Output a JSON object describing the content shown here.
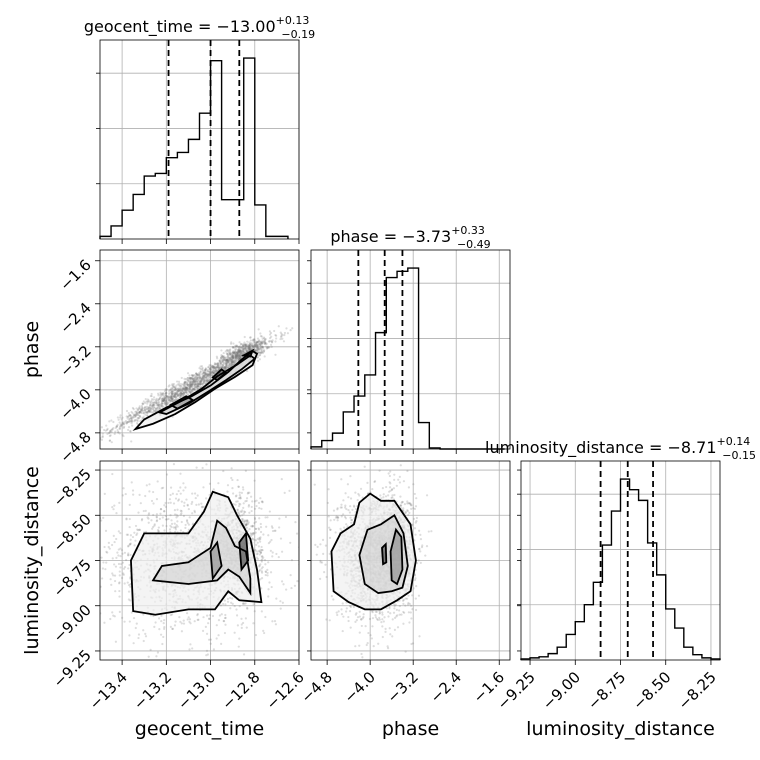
{
  "chart_data": {
    "type": "corner",
    "grid": true,
    "parameters": [
      {
        "name": "geocent_time",
        "label": "geocent_time",
        "range": [
          -13.5,
          -12.6
        ],
        "ticks": [
          -13.4,
          -13.2,
          -13.0,
          -12.8,
          -12.6
        ],
        "tick_labels": [
          "−13.4",
          "−13.2",
          "−13.0",
          "−12.8",
          "−12.6"
        ],
        "title_prefix": "geocent_time = ",
        "median_label": "−13.00",
        "upper_err_label": "+0.13",
        "lower_err_label": "−0.19",
        "median": -13.0,
        "upper_err": 0.13,
        "lower_err": 0.19,
        "hist_edges": [
          -13.5,
          -13.45,
          -13.4,
          -13.35,
          -13.3,
          -13.25,
          -13.2,
          -13.15,
          -13.1,
          -13.05,
          -13.0,
          -12.95,
          -12.9,
          -12.85,
          -12.8,
          -12.75,
          -12.7,
          -12.65
        ],
        "hist_counts": [
          1,
          5,
          11,
          17,
          24,
          25,
          31,
          33,
          38,
          48,
          68,
          15,
          15,
          69,
          13,
          1,
          1
        ]
      },
      {
        "name": "phase",
        "label": "phase",
        "range": [
          -5.1,
          -1.4
        ],
        "ticks": [
          -4.8,
          -4.0,
          -3.2,
          -2.4,
          -1.6
        ],
        "tick_labels": [
          "−4.8",
          "−4.0",
          "−3.2",
          "−2.4",
          "−1.6"
        ],
        "title_prefix": "phase = ",
        "median_label": "−3.73",
        "upper_err_label": "+0.33",
        "lower_err_label": "−0.49",
        "median": -3.73,
        "upper_err": 0.33,
        "lower_err": 0.49,
        "hist_edges": [
          -5.1,
          -4.9,
          -4.7,
          -4.5,
          -4.3,
          -4.1,
          -3.9,
          -3.7,
          -3.5,
          -3.3,
          -3.1,
          -2.9,
          -2.7,
          -2.5,
          -2.3,
          -2.1,
          -1.9,
          -1.7,
          -1.5
        ],
        "hist_counts": [
          2,
          8,
          15,
          35,
          50,
          70,
          110,
          162,
          168,
          171,
          25,
          1,
          0,
          0,
          0,
          0,
          0,
          0
        ]
      },
      {
        "name": "luminosity_distance",
        "label": "luminosity_distance",
        "range": [
          -9.3,
          -8.2
        ],
        "ticks": [
          -9.25,
          -9.0,
          -8.75,
          -8.5,
          -8.25
        ],
        "tick_labels": [
          "−9.25",
          "−9.00",
          "−8.75",
          "−8.50",
          "−8.25"
        ],
        "title_prefix": "luminosity_distance = ",
        "median_label": "−8.71",
        "upper_err_label": "+0.14",
        "lower_err_label": "−0.15",
        "median": -8.71,
        "upper_err": 0.14,
        "lower_err": 0.15,
        "hist_edges": [
          -9.3,
          -9.25,
          -9.2,
          -9.15,
          -9.1,
          -9.05,
          -9.0,
          -8.95,
          -8.9,
          -8.85,
          -8.8,
          -8.75,
          -8.7,
          -8.65,
          -8.6,
          -8.55,
          -8.5,
          -8.45,
          -8.4,
          -8.35,
          -8.3,
          -8.25,
          -8.2
        ],
        "hist_counts": [
          1,
          2,
          3,
          6,
          12,
          24,
          36,
          52,
          73,
          108,
          140,
          170,
          160,
          150,
          110,
          80,
          48,
          30,
          12,
          5,
          2,
          1
        ]
      }
    ],
    "pairs": [
      {
        "x": "geocent_time",
        "y": "phase",
        "samples_cloud": [
          {
            "cx": -13.08,
            "cy": -3.9,
            "sx": 0.18,
            "sy": 0.42,
            "rho": 0.97,
            "n": 1500
          },
          {
            "cx": -12.85,
            "cy": -3.3,
            "sx": 0.05,
            "sy": 0.12,
            "rho": 0.6,
            "n": 500
          }
        ],
        "contours": [
          [
            [
              -13.34,
              -4.73
            ],
            [
              -13.3,
              -4.55
            ],
            [
              -13.2,
              -4.33
            ],
            [
              -13.09,
              -4.13
            ],
            [
              -13.0,
              -3.92
            ],
            [
              -12.92,
              -3.67
            ],
            [
              -12.86,
              -3.44
            ],
            [
              -12.81,
              -3.28
            ],
            [
              -12.79,
              -3.33
            ],
            [
              -12.81,
              -3.54
            ],
            [
              -12.89,
              -3.76
            ],
            [
              -12.98,
              -3.98
            ],
            [
              -13.07,
              -4.23
            ],
            [
              -13.16,
              -4.45
            ],
            [
              -13.26,
              -4.63
            ],
            [
              -13.34,
              -4.73
            ]
          ],
          [
            [
              -13.23,
              -4.42
            ],
            [
              -13.12,
              -4.18
            ],
            [
              -13.04,
              -3.98
            ],
            [
              -12.97,
              -3.75
            ],
            [
              -12.88,
              -3.53
            ],
            [
              -12.82,
              -3.36
            ],
            [
              -12.8,
              -3.42
            ],
            [
              -12.86,
              -3.62
            ],
            [
              -12.93,
              -3.82
            ],
            [
              -13.01,
              -4.03
            ],
            [
              -13.1,
              -4.26
            ],
            [
              -13.2,
              -4.45
            ],
            [
              -13.23,
              -4.42
            ]
          ],
          [
            [
              -13.15,
              -4.35
            ],
            [
              -13.08,
              -4.19
            ],
            [
              -13.11,
              -4.12
            ],
            [
              -13.18,
              -4.28
            ],
            [
              -13.15,
              -4.35
            ]
          ],
          [
            [
              -12.99,
              -3.77
            ],
            [
              -12.95,
              -3.62
            ],
            [
              -12.93,
              -3.68
            ],
            [
              -12.97,
              -3.82
            ],
            [
              -12.99,
              -3.77
            ]
          ],
          [
            [
              -12.85,
              -3.36
            ],
            [
              -12.81,
              -3.27
            ],
            [
              -12.82,
              -3.38
            ],
            [
              -12.85,
              -3.36
            ]
          ]
        ]
      },
      {
        "x": "geocent_time",
        "y": "luminosity_distance",
        "samples_cloud": [
          {
            "cx": -13.1,
            "cy": -8.75,
            "sx": 0.22,
            "sy": 0.2,
            "rho": 0.0,
            "n": 1400
          },
          {
            "cx": -12.87,
            "cy": -8.68,
            "sx": 0.05,
            "sy": 0.14,
            "rho": 0.1,
            "n": 600
          }
        ],
        "contours": [
          [
            [
              -13.35,
              -9.03
            ],
            [
              -13.36,
              -8.75
            ],
            [
              -13.3,
              -8.6
            ],
            [
              -13.1,
              -8.6
            ],
            [
              -13.03,
              -8.48
            ],
            [
              -12.99,
              -8.37
            ],
            [
              -12.92,
              -8.4
            ],
            [
              -12.88,
              -8.5
            ],
            [
              -12.82,
              -8.63
            ],
            [
              -12.79,
              -8.8
            ],
            [
              -12.77,
              -8.98
            ],
            [
              -12.87,
              -8.97
            ],
            [
              -12.92,
              -8.92
            ],
            [
              -12.98,
              -9.02
            ],
            [
              -13.1,
              -9.02
            ],
            [
              -13.25,
              -9.05
            ],
            [
              -13.35,
              -9.03
            ]
          ],
          [
            [
              -13.26,
              -8.86
            ],
            [
              -13.22,
              -8.78
            ],
            [
              -13.1,
              -8.76
            ],
            [
              -13.0,
              -8.68
            ],
            [
              -12.97,
              -8.53
            ],
            [
              -12.93,
              -8.57
            ],
            [
              -12.89,
              -8.67
            ],
            [
              -12.84,
              -8.7
            ],
            [
              -12.82,
              -8.85
            ],
            [
              -12.82,
              -8.93
            ],
            [
              -12.87,
              -8.84
            ],
            [
              -12.92,
              -8.8
            ],
            [
              -12.97,
              -8.86
            ],
            [
              -13.1,
              -8.88
            ],
            [
              -13.26,
              -8.86
            ]
          ],
          [
            [
              -12.99,
              -8.85
            ],
            [
              -13.0,
              -8.7
            ],
            [
              -12.97,
              -8.65
            ],
            [
              -12.95,
              -8.78
            ],
            [
              -12.99,
              -8.85
            ]
          ],
          [
            [
              -12.86,
              -8.8
            ],
            [
              -12.87,
              -8.65
            ],
            [
              -12.84,
              -8.6
            ],
            [
              -12.83,
              -8.75
            ],
            [
              -12.86,
              -8.8
            ]
          ]
        ]
      },
      {
        "x": "phase",
        "y": "luminosity_distance",
        "samples_cloud": [
          {
            "cx": -3.9,
            "cy": -8.72,
            "sx": 0.35,
            "sy": 0.18,
            "rho": 0.0,
            "n": 1800
          },
          {
            "cx": -3.45,
            "cy": -8.68,
            "sx": 0.12,
            "sy": 0.14,
            "rho": 0.0,
            "n": 500
          }
        ],
        "contours": [
          [
            [
              -4.68,
              -8.92
            ],
            [
              -4.72,
              -8.7
            ],
            [
              -4.55,
              -8.6
            ],
            [
              -4.3,
              -8.55
            ],
            [
              -4.2,
              -8.43
            ],
            [
              -4.0,
              -8.38
            ],
            [
              -3.8,
              -8.42
            ],
            [
              -3.55,
              -8.42
            ],
            [
              -3.25,
              -8.55
            ],
            [
              -3.15,
              -8.75
            ],
            [
              -3.25,
              -8.92
            ],
            [
              -3.5,
              -8.97
            ],
            [
              -3.8,
              -9.02
            ],
            [
              -4.1,
              -9.02
            ],
            [
              -4.4,
              -8.98
            ],
            [
              -4.68,
              -8.92
            ]
          ],
          [
            [
              -4.1,
              -8.88
            ],
            [
              -4.2,
              -8.72
            ],
            [
              -4.05,
              -8.58
            ],
            [
              -3.8,
              -8.55
            ],
            [
              -3.55,
              -8.5
            ],
            [
              -3.38,
              -8.6
            ],
            [
              -3.3,
              -8.78
            ],
            [
              -3.4,
              -8.9
            ],
            [
              -3.6,
              -8.92
            ],
            [
              -3.85,
              -8.93
            ],
            [
              -4.1,
              -8.88
            ]
          ],
          [
            [
              -3.6,
              -8.86
            ],
            [
              -3.62,
              -8.7
            ],
            [
              -3.52,
              -8.58
            ],
            [
              -3.42,
              -8.62
            ],
            [
              -3.4,
              -8.8
            ],
            [
              -3.5,
              -8.88
            ],
            [
              -3.6,
              -8.86
            ]
          ],
          [
            [
              -3.76,
              -8.77
            ],
            [
              -3.78,
              -8.68
            ],
            [
              -3.71,
              -8.66
            ],
            [
              -3.7,
              -8.76
            ],
            [
              -3.76,
              -8.77
            ]
          ]
        ]
      }
    ]
  }
}
